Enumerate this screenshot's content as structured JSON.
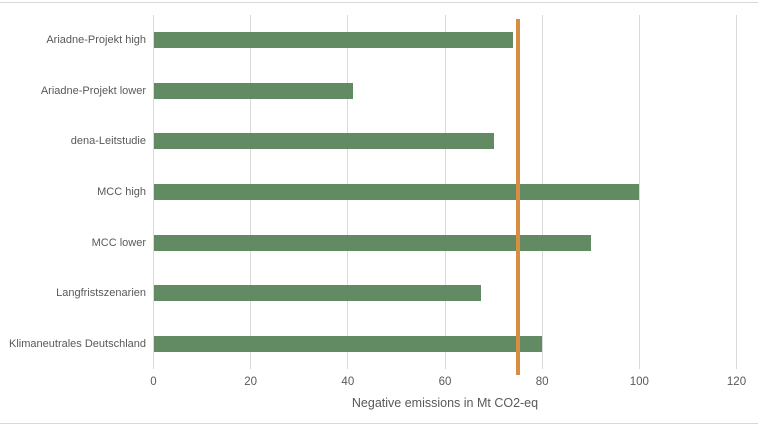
{
  "chart_data": {
    "type": "bar",
    "orientation": "horizontal",
    "title": "",
    "categories": [
      "Ariadne-Projekt high",
      "Ariadne-Projekt lower",
      "dena-Leitstudie",
      "MCC high",
      "MCC lower",
      "Langfristszenarien",
      "Klimaneutrales Deutschland"
    ],
    "values": [
      74,
      41,
      70,
      100,
      90,
      67.5,
      80
    ],
    "xlabel": "Negative emissions in Mt CO2-eq",
    "ylabel": "",
    "xlim": [
      0,
      120
    ],
    "xticks": [
      0,
      20,
      40,
      60,
      80,
      100,
      120
    ],
    "grid": true,
    "legend": false,
    "reference_line": {
      "value": 75,
      "color": "#d78e43"
    },
    "bar_color": "#628a63",
    "gridline_color": "#d9d9d9",
    "text_color": "#595959",
    "background_color": "#ffffff"
  }
}
